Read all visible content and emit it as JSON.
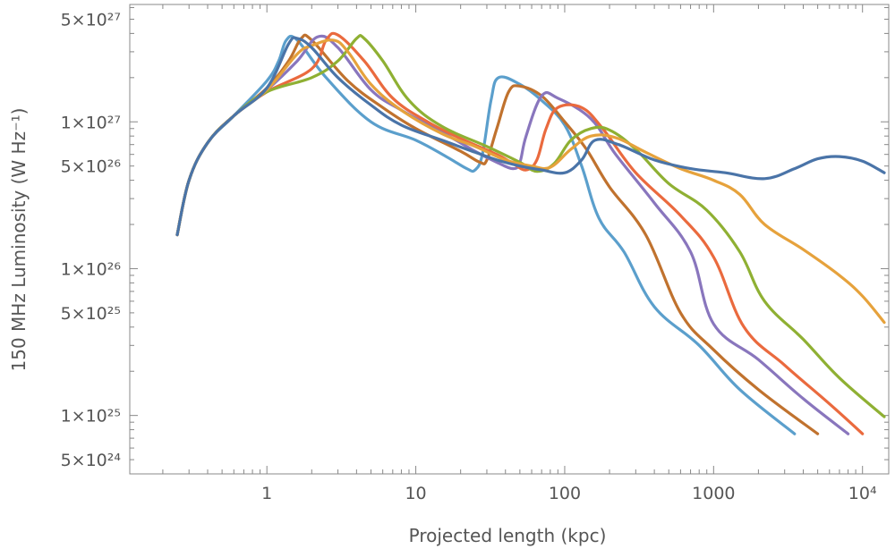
{
  "chart_data": {
    "type": "line",
    "xlabel": "Projected length (kpc)",
    "ylabel": "150 MHz Luminosity (W Hz⁻¹)",
    "xscale": "log",
    "yscale": "log",
    "xlim": [
      0.12,
      15000
    ],
    "ylim": [
      4e+24,
      6.3e+27
    ],
    "grid": false,
    "frame": "full",
    "x_ticks": [
      {
        "value": 1,
        "label": "1"
      },
      {
        "value": 10,
        "label": "10"
      },
      {
        "value": 100,
        "label": "100"
      },
      {
        "value": 1000,
        "label": "1000"
      },
      {
        "value": 10000,
        "label": "10⁴"
      }
    ],
    "y_ticks": [
      {
        "value": 5e+24,
        "label": "5×10²⁴"
      },
      {
        "value": 1e+25,
        "label": "1×10²⁵"
      },
      {
        "value": 5e+25,
        "label": "5×10²⁵"
      },
      {
        "value": 1e+26,
        "label": "1×10²⁶"
      },
      {
        "value": 5e+26,
        "label": "5×10²⁶"
      },
      {
        "value": 1e+27,
        "label": "1×10²⁷"
      },
      {
        "value": 5e+27,
        "label": "5×10²⁷"
      }
    ],
    "series": [
      {
        "color": "#4a74a8",
        "points": [
          [
            0.25,
            1.7e+26
          ],
          [
            0.3,
            4e+26
          ],
          [
            0.4,
            7.2e+26
          ],
          [
            0.6,
            1.1e+27
          ],
          [
            1.0,
            1.7e+27
          ],
          [
            1.4,
            3.4e+27
          ],
          [
            1.6,
            3.7e+27
          ],
          [
            2.0,
            3.2e+27
          ],
          [
            3.0,
            2e+27
          ],
          [
            5.0,
            1.3e+27
          ],
          [
            8.0,
            9.5e+26
          ],
          [
            15,
            7.5e+26
          ],
          [
            25,
            6.2e+26
          ],
          [
            35,
            5.5e+26
          ],
          [
            50,
            5e+26
          ],
          [
            70,
            4.7e+26
          ],
          [
            100,
            4.5e+26
          ],
          [
            130,
            5.5e+26
          ],
          [
            160,
            7.5e+26
          ],
          [
            230,
            7e+26
          ],
          [
            400,
            5.5e+26
          ],
          [
            700,
            4.8e+26
          ],
          [
            1200,
            4.5e+26
          ],
          [
            2200,
            4.1e+26
          ],
          [
            3500,
            4.8e+26
          ],
          [
            5000,
            5.6e+26
          ],
          [
            7000,
            5.8e+26
          ],
          [
            10000,
            5.4e+26
          ],
          [
            14000,
            4.5e+26
          ]
        ]
      },
      {
        "color": "#e6a23c",
        "points": [
          [
            0.25,
            1.7e+26
          ],
          [
            0.3,
            4e+26
          ],
          [
            0.4,
            7.2e+26
          ],
          [
            0.6,
            1.1e+27
          ],
          [
            1.0,
            1.65e+27
          ],
          [
            1.6,
            2.9e+27
          ],
          [
            2.0,
            3.3e+27
          ],
          [
            2.8,
            3.6e+27
          ],
          [
            3.5,
            3e+27
          ],
          [
            5.0,
            1.8e+27
          ],
          [
            8.0,
            1.2e+27
          ],
          [
            15,
            8.3e+26
          ],
          [
            25,
            6.8e+26
          ],
          [
            40,
            5.5e+26
          ],
          [
            60,
            5e+26
          ],
          [
            80,
            4.9e+26
          ],
          [
            110,
            6.5e+26
          ],
          [
            150,
            8e+26
          ],
          [
            220,
            7.8e+26
          ],
          [
            350,
            6.2e+26
          ],
          [
            600,
            4.8e+26
          ],
          [
            1000,
            4e+26
          ],
          [
            1500,
            3.2e+26
          ],
          [
            2200,
            2e+26
          ],
          [
            4000,
            1.35e+26
          ],
          [
            7000,
            9e+25
          ],
          [
            10000,
            6.5e+25
          ],
          [
            14000,
            4.3e+25
          ]
        ]
      },
      {
        "color": "#8fb033",
        "points": [
          [
            0.25,
            1.7e+26
          ],
          [
            0.3,
            4e+26
          ],
          [
            0.4,
            7.2e+26
          ],
          [
            0.6,
            1.1e+27
          ],
          [
            1.0,
            1.6e+27
          ],
          [
            2.0,
            2e+27
          ],
          [
            3.0,
            2.6e+27
          ],
          [
            4.0,
            3.7e+27
          ],
          [
            4.5,
            3.7e+27
          ],
          [
            6.0,
            2.6e+27
          ],
          [
            9.0,
            1.4e+27
          ],
          [
            15,
            9.3e+26
          ],
          [
            30,
            6.8e+26
          ],
          [
            50,
            5.3e+26
          ],
          [
            65,
            4.6e+26
          ],
          [
            85,
            5.2e+26
          ],
          [
            110,
            7.5e+26
          ],
          [
            150,
            9e+26
          ],
          [
            200,
            8.8e+26
          ],
          [
            300,
            6.5e+26
          ],
          [
            500,
            3.8e+26
          ],
          [
            900,
            2.5e+26
          ],
          [
            1500,
            1.3e+26
          ],
          [
            2200,
            6e+25
          ],
          [
            4000,
            3.3e+25
          ],
          [
            7000,
            1.8e+25
          ],
          [
            14000,
            9.8e+24
          ]
        ]
      },
      {
        "color": "#ea6a3e",
        "points": [
          [
            0.25,
            1.7e+26
          ],
          [
            0.3,
            4e+26
          ],
          [
            0.4,
            7.2e+26
          ],
          [
            0.6,
            1.1e+27
          ],
          [
            1.0,
            1.6e+27
          ],
          [
            2.0,
            2.3e+27
          ],
          [
            2.5,
            3.6e+27
          ],
          [
            3.0,
            3.9e+27
          ],
          [
            4.5,
            2.6e+27
          ],
          [
            7.0,
            1.45e+27
          ],
          [
            12,
            1e+27
          ],
          [
            20,
            7.7e+26
          ],
          [
            35,
            6e+26
          ],
          [
            45,
            5.2e+26
          ],
          [
            55,
            4.7e+26
          ],
          [
            65,
            5.5e+26
          ],
          [
            75,
            9e+26
          ],
          [
            90,
            1.25e+27
          ],
          [
            130,
            1.25e+27
          ],
          [
            180,
            9e+26
          ],
          [
            300,
            4.5e+26
          ],
          [
            600,
            2.3e+26
          ],
          [
            1000,
            1.2e+26
          ],
          [
            1600,
            4e+25
          ],
          [
            3000,
            2.2e+25
          ],
          [
            6000,
            1.2e+25
          ],
          [
            10000,
            7.5e+24
          ]
        ]
      },
      {
        "color": "#8976bd",
        "points": [
          [
            0.25,
            1.7e+26
          ],
          [
            0.3,
            4e+26
          ],
          [
            0.4,
            7.2e+26
          ],
          [
            0.6,
            1.1e+27
          ],
          [
            1.0,
            1.65e+27
          ],
          [
            1.6,
            2.6e+27
          ],
          [
            2.2,
            3.8e+27
          ],
          [
            3.0,
            3.2e+27
          ],
          [
            5.0,
            1.65e+27
          ],
          [
            8.0,
            1.2e+27
          ],
          [
            15,
            8.5e+26
          ],
          [
            25,
            6.3e+26
          ],
          [
            35,
            5.3e+26
          ],
          [
            45,
            4.8e+26
          ],
          [
            50,
            5.3e+26
          ],
          [
            55,
            8e+26
          ],
          [
            70,
            1.5e+27
          ],
          [
            90,
            1.45e+27
          ],
          [
            150,
            1.05e+27
          ],
          [
            220,
            6e+26
          ],
          [
            400,
            2.8e+26
          ],
          [
            700,
            1.3e+26
          ],
          [
            1000,
            4.2e+25
          ],
          [
            2000,
            2.4e+25
          ],
          [
            4000,
            1.3e+25
          ],
          [
            8000,
            7.5e+24
          ]
        ]
      },
      {
        "color": "#c0722e",
        "points": [
          [
            0.25,
            1.7e+26
          ],
          [
            0.3,
            4e+26
          ],
          [
            0.4,
            7.2e+26
          ],
          [
            0.6,
            1.1e+27
          ],
          [
            1.0,
            1.7e+27
          ],
          [
            1.4,
            2.6e+27
          ],
          [
            1.7,
            3.7e+27
          ],
          [
            2.0,
            3.6e+27
          ],
          [
            3.5,
            1.9e+27
          ],
          [
            6.0,
            1.25e+27
          ],
          [
            10,
            9e+26
          ],
          [
            20,
            6.3e+26
          ],
          [
            27,
            5.3e+26
          ],
          [
            30,
            5.5e+26
          ],
          [
            35,
            9e+26
          ],
          [
            42,
            1.6e+27
          ],
          [
            50,
            1.75e+27
          ],
          [
            70,
            1.5e+27
          ],
          [
            100,
            1e+27
          ],
          [
            140,
            6.5e+26
          ],
          [
            200,
            3.6e+26
          ],
          [
            350,
            1.7e+26
          ],
          [
            600,
            5e+25
          ],
          [
            1000,
            2.8e+25
          ],
          [
            2000,
            1.5e+25
          ],
          [
            5000,
            7.5e+24
          ]
        ]
      },
      {
        "color": "#5b9fcc",
        "points": [
          [
            0.25,
            1.7e+26
          ],
          [
            0.3,
            4e+26
          ],
          [
            0.4,
            7.2e+26
          ],
          [
            0.6,
            1.1e+27
          ],
          [
            1.0,
            1.9e+27
          ],
          [
            1.2,
            2.6e+27
          ],
          [
            1.35,
            3.6e+27
          ],
          [
            1.6,
            3.6e+27
          ],
          [
            2.5,
            2e+27
          ],
          [
            5.0,
            1e+27
          ],
          [
            10,
            7.5e+26
          ],
          [
            16,
            5.8e+26
          ],
          [
            22,
            4.8e+26
          ],
          [
            25,
            4.7e+26
          ],
          [
            28,
            6e+26
          ],
          [
            32,
            1.4e+27
          ],
          [
            36,
            2e+27
          ],
          [
            50,
            1.8e+27
          ],
          [
            70,
            1.4e+27
          ],
          [
            100,
            9.5e+26
          ],
          [
            130,
            5e+26
          ],
          [
            170,
            2.2e+26
          ],
          [
            250,
            1.3e+26
          ],
          [
            400,
            5.5e+25
          ],
          [
            800,
            3e+25
          ],
          [
            1500,
            1.5e+25
          ],
          [
            3500,
            7.5e+24
          ]
        ]
      }
    ]
  }
}
